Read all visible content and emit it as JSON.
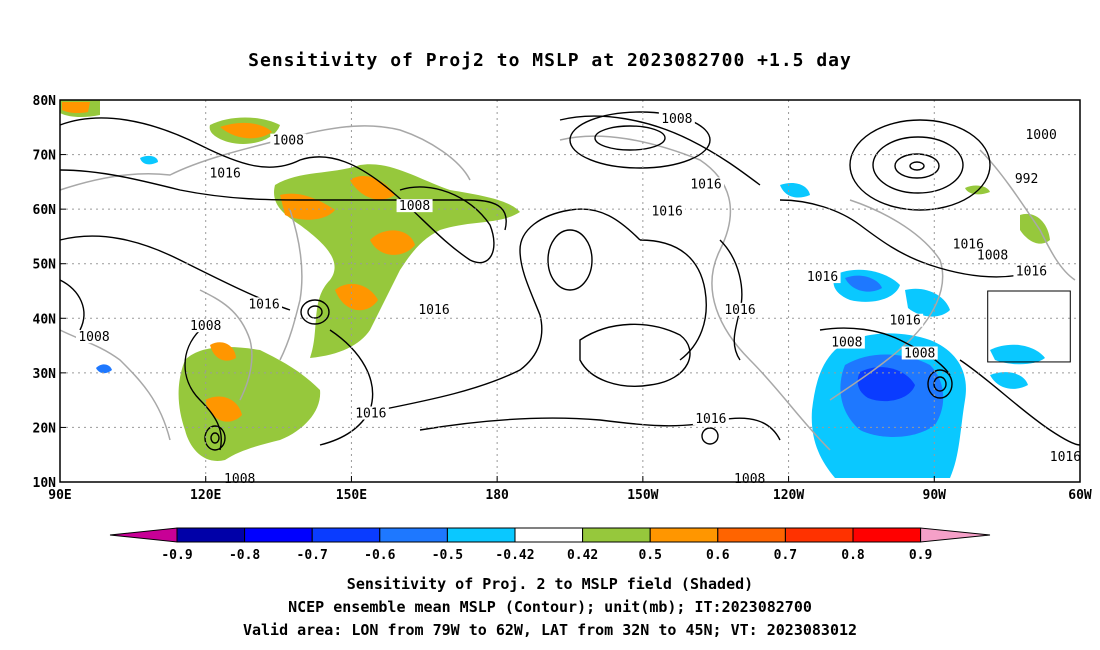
{
  "title": "Sensitivity of Proj2 to MSLP at 2023082700 +1.5 day",
  "map": {
    "lon_range": [
      90,
      300
    ],
    "lat_range": [
      10,
      80
    ],
    "lon_ticks": [
      "90E",
      "120E",
      "150E",
      "180",
      "150W",
      "120W",
      "90W",
      "60W"
    ],
    "lat_ticks": [
      "80N",
      "70N",
      "60N",
      "50N",
      "40N",
      "30N",
      "20N",
      "10N"
    ],
    "valid_box": {
      "lon": [
        281,
        298
      ],
      "lat": [
        32,
        45
      ]
    },
    "contour_labels": [
      {
        "text": "1008",
        "lon": 137,
        "lat": 72
      },
      {
        "text": "1016",
        "lon": 124,
        "lat": 66
      },
      {
        "text": "1008",
        "lon": 163,
        "lat": 60
      },
      {
        "text": "1016",
        "lon": 132,
        "lat": 42
      },
      {
        "text": "1008",
        "lon": 120,
        "lat": 38
      },
      {
        "text": "1008",
        "lon": 97,
        "lat": 36
      },
      {
        "text": "1016",
        "lon": 167,
        "lat": 41
      },
      {
        "text": "1016",
        "lon": 154,
        "lat": 22
      },
      {
        "text": "1008",
        "lon": 127,
        "lat": 10
      },
      {
        "text": "1008",
        "lon": 217,
        "lat": 76
      },
      {
        "text": "1016",
        "lon": 223,
        "lat": 64
      },
      {
        "text": "1016",
        "lon": 215,
        "lat": 59
      },
      {
        "text": "1016",
        "lon": 230,
        "lat": 41
      },
      {
        "text": "1016",
        "lon": 224,
        "lat": 21
      },
      {
        "text": "1008",
        "lon": 232,
        "lat": 10
      },
      {
        "text": "1016",
        "lon": 247,
        "lat": 47
      },
      {
        "text": "1008",
        "lon": 252,
        "lat": 35
      },
      {
        "text": "1016",
        "lon": 264,
        "lat": 39
      },
      {
        "text": "1008",
        "lon": 267,
        "lat": 33
      },
      {
        "text": "1016",
        "lon": 277,
        "lat": 53
      },
      {
        "text": "1008",
        "lon": 282,
        "lat": 51
      },
      {
        "text": "1016",
        "lon": 290,
        "lat": 48
      },
      {
        "text": "1000",
        "lon": 292,
        "lat": 73
      },
      {
        "text": "992",
        "lon": 289,
        "lat": 65
      },
      {
        "text": "1016",
        "lon": 297,
        "lat": 14
      }
    ]
  },
  "colorbar": {
    "labels": [
      "-0.9",
      "-0.8",
      "-0.7",
      "-0.6",
      "-0.5",
      "-0.42",
      "0.42",
      "0.5",
      "0.6",
      "0.7",
      "0.8",
      "0.9"
    ],
    "colors": [
      "#0000a8",
      "#0000ff",
      "#0a3cff",
      "#1e78ff",
      "#0ac8ff",
      "#ffffff",
      "#96c83c",
      "#ff9600",
      "#ff6400",
      "#ff3200",
      "#ff0000"
    ],
    "low_end_color": "#c80096",
    "high_end_color": "#f5a0c8"
  },
  "captions": [
    "Sensitivity of Proj. 2 to MSLP field (Shaded)",
    "NCEP ensemble mean MSLP (Contour); unit(mb); IT:2023082700",
    "Valid area: LON from 79W to 62W, LAT from 32N to 45N; VT: 2023083012"
  ]
}
